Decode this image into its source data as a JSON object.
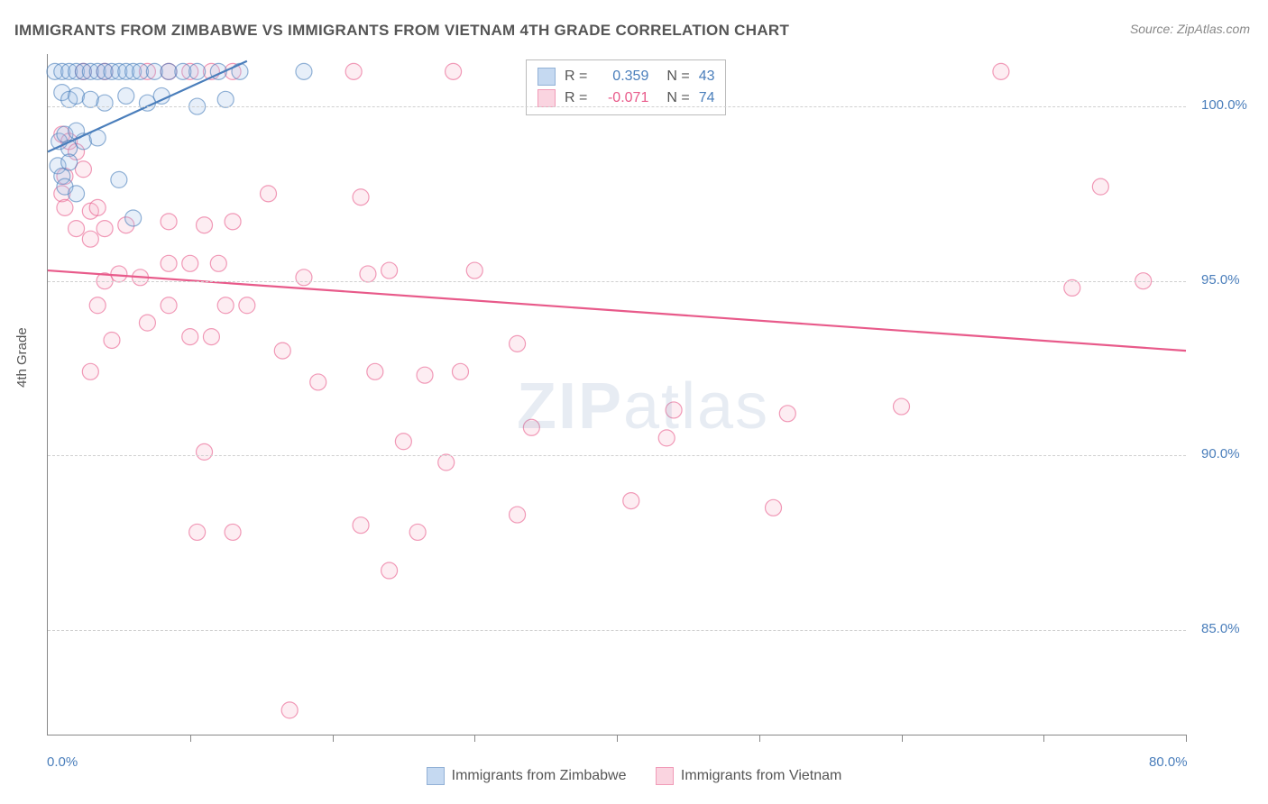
{
  "title": "IMMIGRANTS FROM ZIMBABWE VS IMMIGRANTS FROM VIETNAM 4TH GRADE CORRELATION CHART",
  "source": "Source: ZipAtlas.com",
  "ylabel": "4th Grade",
  "watermark": {
    "bold": "ZIP",
    "rest": "atlas"
  },
  "chart": {
    "type": "scatter",
    "background_color": "#ffffff",
    "grid_color": "#d0d0d0",
    "axis_color": "#888888",
    "tick_label_color": "#4a7ebb",
    "xlim": [
      0,
      80
    ],
    "ylim": [
      82,
      101.5
    ],
    "xtick_positions": [
      0,
      10,
      20,
      30,
      40,
      50,
      60,
      70,
      80
    ],
    "xtick_labels": {
      "0": "0.0%",
      "80": "80.0%"
    },
    "ytick_positions": [
      85,
      90,
      95,
      100
    ],
    "ytick_labels": {
      "85": "85.0%",
      "90": "90.0%",
      "95": "95.0%",
      "100": "100.0%"
    },
    "marker_radius": 9,
    "marker_fill_opacity": 0.25,
    "marker_stroke_width": 1.2,
    "line_width": 2.2,
    "series": [
      {
        "name": "Immigrants from Zimbabwe",
        "color": "#4a7ebb",
        "fill": "#9fc1e8",
        "R": "0.359",
        "N": "43",
        "trend": {
          "x1": 0,
          "y1": 98.7,
          "x2": 14,
          "y2": 101.3
        },
        "points": [
          [
            0.5,
            101.0
          ],
          [
            1.0,
            101.0
          ],
          [
            1.5,
            101.0
          ],
          [
            2.0,
            101.0
          ],
          [
            2.5,
            101.0
          ],
          [
            3.0,
            101.0
          ],
          [
            3.5,
            101.0
          ],
          [
            4.0,
            101.0
          ],
          [
            4.5,
            101.0
          ],
          [
            5.0,
            101.0
          ],
          [
            5.5,
            101.0
          ],
          [
            6.0,
            101.0
          ],
          [
            6.5,
            101.0
          ],
          [
            7.5,
            101.0
          ],
          [
            8.5,
            101.0
          ],
          [
            9.5,
            101.0
          ],
          [
            10.5,
            101.0
          ],
          [
            12.0,
            101.0
          ],
          [
            13.5,
            101.0
          ],
          [
            18.0,
            101.0
          ],
          [
            1.0,
            100.4
          ],
          [
            1.5,
            100.2
          ],
          [
            2.0,
            100.3
          ],
          [
            3.0,
            100.2
          ],
          [
            4.0,
            100.1
          ],
          [
            5.5,
            100.3
          ],
          [
            7.0,
            100.1
          ],
          [
            8.0,
            100.3
          ],
          [
            10.5,
            100.0
          ],
          [
            12.5,
            100.2
          ],
          [
            0.8,
            99.0
          ],
          [
            1.2,
            99.2
          ],
          [
            1.5,
            98.8
          ],
          [
            2.0,
            99.3
          ],
          [
            2.5,
            99.0
          ],
          [
            3.5,
            99.1
          ],
          [
            0.7,
            98.3
          ],
          [
            1.0,
            98.0
          ],
          [
            1.5,
            98.4
          ],
          [
            1.2,
            97.7
          ],
          [
            2.0,
            97.5
          ],
          [
            5.0,
            97.9
          ],
          [
            6.0,
            96.8
          ]
        ]
      },
      {
        "name": "Immigrants from Vietnam",
        "color": "#e85a8a",
        "fill": "#f7b8cd",
        "R": "-0.071",
        "N": "74",
        "trend": {
          "x1": 0,
          "y1": 95.3,
          "x2": 80,
          "y2": 93.0
        },
        "points": [
          [
            2.5,
            101.0
          ],
          [
            4.0,
            101.0
          ],
          [
            7.0,
            101.0
          ],
          [
            8.5,
            101.0
          ],
          [
            10.0,
            101.0
          ],
          [
            11.5,
            101.0
          ],
          [
            13.0,
            101.0
          ],
          [
            21.5,
            101.0
          ],
          [
            28.5,
            101.0
          ],
          [
            36.0,
            101.0
          ],
          [
            67.0,
            101.0
          ],
          [
            1.0,
            99.2
          ],
          [
            1.5,
            99.0
          ],
          [
            2.0,
            98.7
          ],
          [
            1.2,
            98.0
          ],
          [
            2.5,
            98.2
          ],
          [
            1.0,
            97.5
          ],
          [
            1.2,
            97.1
          ],
          [
            3.0,
            97.0
          ],
          [
            3.5,
            97.1
          ],
          [
            2.0,
            96.5
          ],
          [
            3.0,
            96.2
          ],
          [
            4.0,
            96.5
          ],
          [
            5.5,
            96.6
          ],
          [
            8.5,
            96.7
          ],
          [
            11.0,
            96.6
          ],
          [
            13.0,
            96.7
          ],
          [
            15.5,
            97.5
          ],
          [
            22.0,
            97.4
          ],
          [
            4.0,
            95.0
          ],
          [
            5.0,
            95.2
          ],
          [
            6.5,
            95.1
          ],
          [
            8.5,
            95.5
          ],
          [
            10.0,
            95.5
          ],
          [
            12.0,
            95.5
          ],
          [
            18.0,
            95.1
          ],
          [
            22.5,
            95.2
          ],
          [
            24.0,
            95.3
          ],
          [
            30.0,
            95.3
          ],
          [
            3.5,
            94.3
          ],
          [
            7.0,
            93.8
          ],
          [
            8.5,
            94.3
          ],
          [
            12.5,
            94.3
          ],
          [
            14.0,
            94.3
          ],
          [
            4.5,
            93.3
          ],
          [
            10.0,
            93.4
          ],
          [
            11.5,
            93.4
          ],
          [
            3.0,
            92.4
          ],
          [
            16.5,
            93.0
          ],
          [
            19.0,
            92.1
          ],
          [
            23.0,
            92.4
          ],
          [
            26.5,
            92.3
          ],
          [
            29.0,
            92.4
          ],
          [
            33.0,
            93.2
          ],
          [
            34.0,
            90.8
          ],
          [
            44.0,
            91.3
          ],
          [
            43.5,
            90.5
          ],
          [
            52.0,
            91.2
          ],
          [
            60.0,
            91.4
          ],
          [
            11.0,
            90.1
          ],
          [
            25.0,
            90.4
          ],
          [
            28.0,
            89.8
          ],
          [
            33.0,
            88.3
          ],
          [
            41.0,
            88.7
          ],
          [
            51.0,
            88.5
          ],
          [
            10.5,
            87.8
          ],
          [
            13.0,
            87.8
          ],
          [
            22.0,
            88.0
          ],
          [
            26.0,
            87.8
          ],
          [
            24.0,
            86.7
          ],
          [
            17.0,
            82.7
          ],
          [
            72.0,
            94.8
          ],
          [
            74.0,
            97.7
          ],
          [
            77.0,
            95.0
          ]
        ]
      }
    ]
  },
  "legend_top": {
    "r_label": "R =",
    "n_label": "N ="
  },
  "legend_bottom_labels": [
    "Immigrants from Zimbabwe",
    "Immigrants from Vietnam"
  ]
}
